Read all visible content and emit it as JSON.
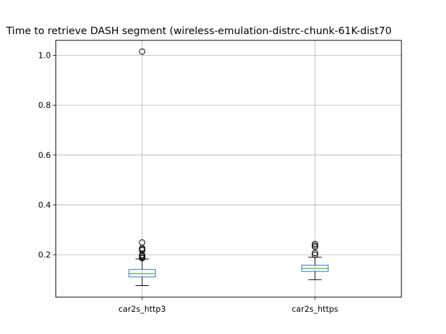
{
  "chart_data": {
    "type": "box",
    "title": "Time to retrieve DASH segment (wireless-emulation-distrc-chunk-61K-dist70",
    "xlabel": "",
    "ylabel": "",
    "ylim": [
      0.03,
      1.06
    ],
    "yticks": [
      "0.2",
      "0.4",
      "0.6",
      "0.8",
      "1.0"
    ],
    "grid": true,
    "categories": [
      "car2s_http3",
      "car2s_https"
    ],
    "boxes": [
      {
        "category": "car2s_http3",
        "whislo": 0.076,
        "q1": 0.111,
        "med": 0.124,
        "q3": 0.141,
        "whishi": 0.183,
        "fliers": [
          0.186,
          0.19,
          0.195,
          0.199,
          0.218,
          0.222,
          0.226,
          0.249,
          1.015
        ]
      },
      {
        "category": "car2s_https",
        "whislo": 0.1,
        "q1": 0.133,
        "med": 0.145,
        "q3": 0.158,
        "whishi": 0.19,
        "fliers": [
          0.2,
          0.207,
          0.231,
          0.237,
          0.243
        ]
      }
    ],
    "colors": {
      "box": "#1f77b4",
      "median": "#2ca02c",
      "whisker": "#000000",
      "grid": "#b0b0b0"
    }
  }
}
